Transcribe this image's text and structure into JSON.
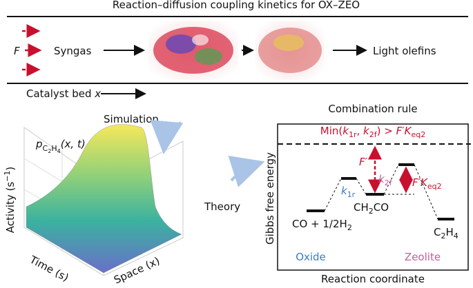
{
  "title": "Reaction–diffusion coupling kinetics for OX–ZEO",
  "flow": {
    "feed": "F",
    "syngas": "Syngas",
    "product": "Light olefins",
    "bed": [
      "Catalyst bed ",
      "x"
    ]
  },
  "simulation": {
    "label": "Simulation",
    "surface_label": [
      "p",
      "C",
      "2",
      "H",
      "4",
      "(x, t)"
    ],
    "activity_axis": [
      "Activity (s",
      "−1",
      ")"
    ],
    "time_axis": "Time (s)",
    "space_axis": "Space (x)"
  },
  "theory": "Theory",
  "rule": {
    "title": "Combination rule",
    "condition": [
      "Min(",
      "k",
      "1r",
      ", ",
      "k",
      "2f",
      ") > ",
      "F′K",
      "eq2"
    ],
    "energy_axis": "Gibbs free energy",
    "coordinate_axis": "Reaction coordinate",
    "f_prime": "F′",
    "k1r": [
      "k",
      "1r"
    ],
    "k2f": [
      "k",
      "2f"
    ],
    "f_keq2": [
      "F′K",
      "eq2"
    ],
    "co": [
      "CO + 1/2H",
      "2"
    ],
    "ch2co": [
      "CH",
      "2",
      "CO"
    ],
    "c2h4": [
      "C",
      "2",
      "H",
      "4"
    ],
    "oxide": "Oxide",
    "zeolite": "Zeolite"
  }
}
